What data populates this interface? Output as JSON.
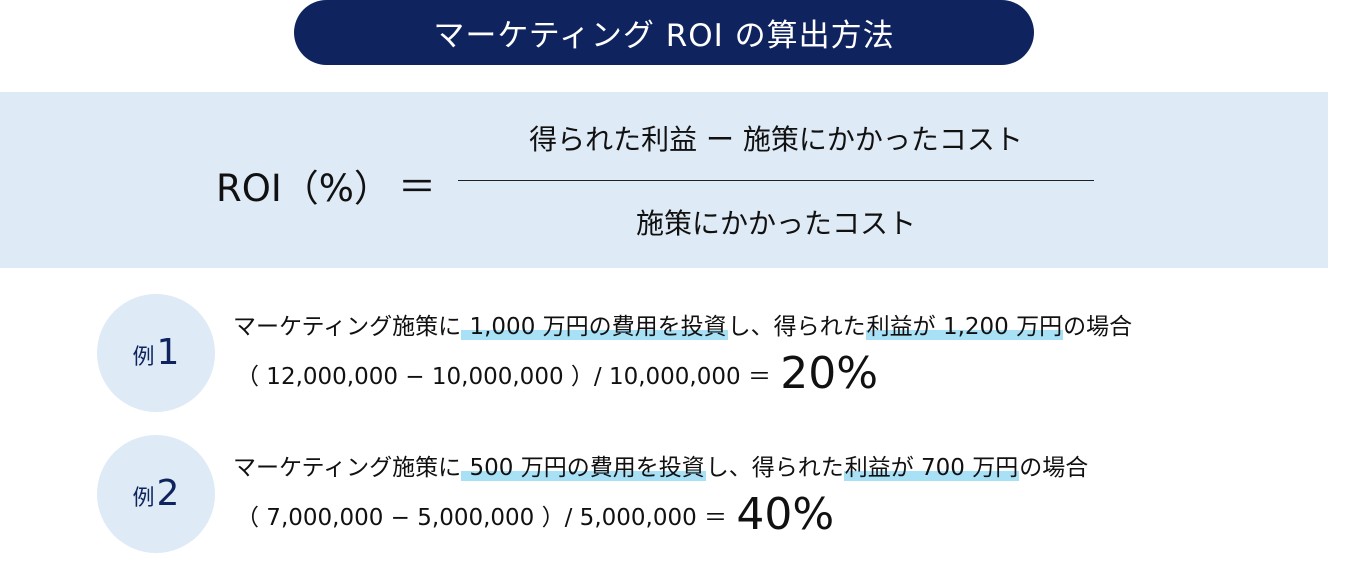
{
  "title": "マーケティング ROI の算出方法",
  "formula": {
    "lhs": "ROI（%）",
    "equals": "＝",
    "numerator": "得られた利益 ー 施策にかかったコスト",
    "denominator": "施策にかかったコスト"
  },
  "examples": [
    {
      "badge_prefix": "例",
      "badge_number": "1",
      "line1_a": "マーケティング施策に",
      "line1_hl1": " 1,000 万円の費用を投資",
      "line1_b": "し、得られた",
      "line1_hl2": "利益が 1,200 万円",
      "line1_c": "の場合",
      "calc": "（ 12,000,000 − 10,000,000 ）/ 10,000,000 ＝",
      "result": "20%"
    },
    {
      "badge_prefix": "例",
      "badge_number": "2",
      "line1_a": "マーケティング施策に",
      "line1_hl1": " 500 万円の費用を投資",
      "line1_b": "し、得られた",
      "line1_hl2": "利益が 700 万円",
      "line1_c": "の場合",
      "calc": "（ 7,000,000 − 5,000,000 ）/ 5,000,000 ＝",
      "result": "40%"
    }
  ],
  "colors": {
    "navy": "#0f235f",
    "band": "#deeaf5",
    "highlight": "#a8e0f6"
  }
}
